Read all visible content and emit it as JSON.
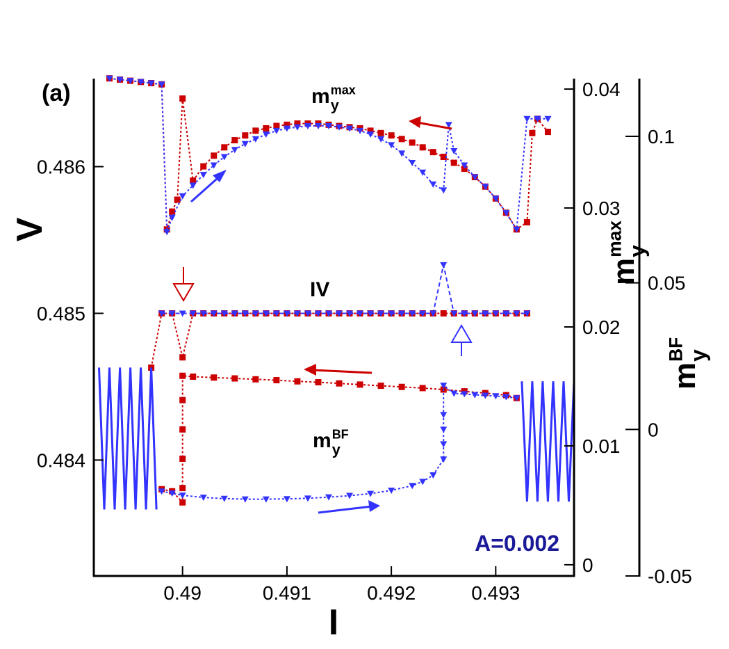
{
  "chart_data": {
    "type": "line",
    "panel_label": "(a)",
    "annotation": "A=0.002",
    "x_label": "I",
    "y_label": "V",
    "y2_label": {
      "base": "m",
      "sub": "y",
      "sup": "max"
    },
    "y3_label": {
      "base": "m",
      "sub": "y",
      "sup": "BF"
    },
    "curve_labels": [
      {
        "base": "m",
        "sub": "y",
        "sup": "max"
      },
      {
        "base": "IV"
      },
      {
        "base": "m",
        "sub": "y",
        "sup": "BF"
      }
    ],
    "xlim": [
      0.48915,
      0.49375
    ],
    "xticks": [
      0.49,
      0.491,
      0.492,
      0.493
    ],
    "ylim": [
      0.48321,
      0.4866
    ],
    "yticks": [
      0.484,
      0.485,
      0.486
    ],
    "y2lim": [
      -0.00094,
      0.04088
    ],
    "y2ticks": [
      0,
      0.01,
      0.02,
      0.03,
      0.04
    ],
    "y3lim": [
      -0.05,
      0.1197
    ],
    "y3ticks": [
      -0.05,
      0,
      0.05,
      0.1
    ],
    "series": [
      {
        "axis": "y2",
        "color": "#cc0000",
        "marker": "square",
        "dash": "3,3",
        "x": [
          0.4893,
          0.4894,
          0.4895,
          0.4896,
          0.4897,
          0.4898,
          0.48985,
          0.4899,
          0.48995,
          0.49,
          0.4901,
          0.4902,
          0.4903,
          0.4904,
          0.4905,
          0.4906,
          0.4907,
          0.4908,
          0.4909,
          0.491,
          0.4911,
          0.4912,
          0.4913,
          0.4914,
          0.4915,
          0.4916,
          0.4917,
          0.4918,
          0.4919,
          0.492,
          0.4921,
          0.4922,
          0.4923,
          0.4924,
          0.4925,
          0.4926,
          0.4927,
          0.4928,
          0.4929,
          0.493,
          0.4931,
          0.4932,
          0.4933,
          0.49335,
          0.4934,
          0.4935
        ],
        "values": [
          0.0409,
          0.0408,
          0.0407,
          0.0406,
          0.0405,
          0.0404,
          0.0282,
          0.0297,
          0.0307,
          0.0392,
          0.0323,
          0.0335,
          0.0344,
          0.0351,
          0.0357,
          0.0361,
          0.0365,
          0.0367,
          0.0369,
          0.037,
          0.0371,
          0.0371,
          0.0371,
          0.037,
          0.0369,
          0.0368,
          0.0367,
          0.0365,
          0.0363,
          0.0361,
          0.0358,
          0.0355,
          0.0351,
          0.0347,
          0.0343,
          0.0338,
          0.0333,
          0.0326,
          0.0318,
          0.0308,
          0.0296,
          0.0282,
          0.0288,
          0.0363,
          0.0375,
          0.0364
        ]
      },
      {
        "axis": "y2",
        "color": "#3333ff",
        "marker": "triangle",
        "dash": "3,3",
        "x": [
          0.4893,
          0.4894,
          0.4895,
          0.4896,
          0.4897,
          0.4898,
          0.48985,
          0.4899,
          0.49,
          0.4901,
          0.4902,
          0.4903,
          0.4904,
          0.4905,
          0.4906,
          0.4907,
          0.4908,
          0.4909,
          0.491,
          0.4911,
          0.4912,
          0.4913,
          0.4914,
          0.4915,
          0.4916,
          0.4917,
          0.4918,
          0.4919,
          0.492,
          0.4921,
          0.4922,
          0.4923,
          0.4924,
          0.4925,
          0.49255,
          0.4926,
          0.4927,
          0.4928,
          0.4929,
          0.493,
          0.4931,
          0.4932,
          0.4933,
          0.4934,
          0.4935
        ],
        "values": [
          0.0409,
          0.0408,
          0.0407,
          0.0406,
          0.0405,
          0.0404,
          0.028,
          0.0292,
          0.031,
          0.0319,
          0.0328,
          0.0336,
          0.0343,
          0.0349,
          0.0354,
          0.0358,
          0.0362,
          0.0365,
          0.0367,
          0.0368,
          0.0369,
          0.0369,
          0.0369,
          0.0368,
          0.0367,
          0.0365,
          0.0362,
          0.0358,
          0.0353,
          0.0346,
          0.0338,
          0.033,
          0.032,
          0.0315,
          0.037,
          0.0348,
          0.0336,
          0.0326,
          0.0318,
          0.0308,
          0.0296,
          0.0282,
          0.0375,
          0.0375,
          0.0375
        ]
      },
      {
        "axis": "y",
        "color": "#cc0000",
        "marker": "square",
        "dash": "3,3",
        "x": [
          0.4897,
          0.4898,
          0.4899,
          0.49,
          0.4901,
          0.4902,
          0.4903,
          0.4904,
          0.4905,
          0.4906,
          0.4907,
          0.4908,
          0.4909,
          0.491,
          0.4911,
          0.4912,
          0.4913,
          0.4914,
          0.4915,
          0.4916,
          0.4917,
          0.4918,
          0.4919,
          0.492,
          0.4921,
          0.4922,
          0.4923,
          0.4924,
          0.4925,
          0.4926,
          0.4927,
          0.4928,
          0.4929,
          0.493,
          0.4931,
          0.4932,
          0.4933
        ],
        "values": [
          0.48463,
          0.485,
          0.485,
          0.4847,
          0.485,
          0.485,
          0.485,
          0.485,
          0.485,
          0.485,
          0.485,
          0.485,
          0.485,
          0.485,
          0.485,
          0.485,
          0.485,
          0.485,
          0.485,
          0.485,
          0.485,
          0.485,
          0.485,
          0.485,
          0.485,
          0.485,
          0.485,
          0.485,
          0.485,
          0.485,
          0.485,
          0.485,
          0.485,
          0.485,
          0.485,
          0.485,
          0.485
        ]
      },
      {
        "axis": "y",
        "color": "#3333ff",
        "marker": "triangle",
        "dash": "6,4",
        "x": [
          0.4898,
          0.4899,
          0.49,
          0.4901,
          0.4902,
          0.4903,
          0.4904,
          0.4905,
          0.4906,
          0.4907,
          0.4908,
          0.4909,
          0.491,
          0.4911,
          0.4912,
          0.4913,
          0.4914,
          0.4915,
          0.4916,
          0.4917,
          0.4918,
          0.4919,
          0.492,
          0.4921,
          0.4922,
          0.4923,
          0.4924,
          0.4925,
          0.4926,
          0.4927,
          0.4928,
          0.4929,
          0.493,
          0.4931,
          0.4932,
          0.4933
        ],
        "values": [
          0.485,
          0.485,
          0.485,
          0.485,
          0.485,
          0.485,
          0.485,
          0.485,
          0.485,
          0.485,
          0.485,
          0.485,
          0.485,
          0.485,
          0.485,
          0.485,
          0.485,
          0.485,
          0.485,
          0.485,
          0.485,
          0.485,
          0.485,
          0.485,
          0.485,
          0.485,
          0.485,
          0.48533,
          0.485,
          0.485,
          0.485,
          0.485,
          0.485,
          0.485,
          0.485,
          0.485
        ]
      },
      {
        "axis": "y3",
        "color": "#3333ff",
        "marker": "none",
        "dash": "none",
        "x": [
          0.4892,
          0.48925,
          0.4893,
          0.48935,
          0.4894,
          0.48945,
          0.4895,
          0.48955,
          0.4896,
          0.48965,
          0.4897,
          0.48975
        ],
        "values": [
          0.0211,
          -0.0273,
          0.0211,
          -0.0273,
          0.0211,
          -0.0273,
          0.0211,
          -0.0273,
          0.0211,
          -0.0273,
          0.0211,
          -0.0273
        ]
      },
      {
        "axis": "y3",
        "color": "#3333ff",
        "marker": "none",
        "dash": "none",
        "x": [
          0.49325,
          0.4933,
          0.49335,
          0.4934,
          0.49345,
          0.4935,
          0.49355,
          0.4936,
          0.49365,
          0.4937,
          0.49375
        ],
        "values": [
          0.0164,
          -0.0246,
          0.0164,
          -0.0246,
          0.0164,
          -0.0246,
          0.0164,
          -0.0246,
          0.0164,
          -0.0246,
          0.0164
        ]
      },
      {
        "axis": "y3",
        "color": "#cc0000",
        "marker": "square",
        "dash": "3,3",
        "x": [
          0.4898,
          0.4899,
          0.49,
          0.49,
          0.49,
          0.49,
          0.49,
          0.49,
          0.4901,
          0.4903,
          0.4905,
          0.4907,
          0.4909,
          0.4911,
          0.4913,
          0.4915,
          0.4917,
          0.4919,
          0.4921,
          0.4923,
          0.4925,
          0.4927,
          0.4929,
          0.4931,
          0.4932
        ],
        "values": [
          -0.0204,
          -0.0211,
          -0.0249,
          -0.02,
          -0.01,
          0,
          0.01,
          0.0183,
          0.018,
          0.0177,
          0.0174,
          0.0171,
          0.0168,
          0.0164,
          0.0161,
          0.0157,
          0.0153,
          0.0149,
          0.0145,
          0.0141,
          0.0136,
          0.013,
          0.0124,
          0.0117,
          0.0107
        ]
      },
      {
        "axis": "y3",
        "color": "#3333ff",
        "marker": "triangle",
        "dash": "3,3",
        "x": [
          0.4898,
          0.4899,
          0.49,
          0.4902,
          0.4904,
          0.4906,
          0.4908,
          0.491,
          0.4912,
          0.4914,
          0.4916,
          0.4918,
          0.492,
          0.4922,
          0.4923,
          0.4924,
          0.4925,
          0.4925,
          0.4925,
          0.4925,
          0.4925,
          0.4926,
          0.4927,
          0.4928,
          0.4929,
          0.493,
          0.4931,
          0.4932
        ],
        "values": [
          -0.0211,
          -0.0218,
          -0.0225,
          -0.0232,
          -0.0236,
          -0.0238,
          -0.0238,
          -0.0237,
          -0.0235,
          -0.0231,
          -0.0226,
          -0.0219,
          -0.0208,
          -0.0192,
          -0.0178,
          -0.0156,
          -0.0102,
          -0.005,
          0,
          0.005,
          0.015,
          0.0123,
          0.0121,
          0.0118,
          0.0116,
          0.0114,
          0.0111,
          0.0107
        ]
      }
    ]
  }
}
